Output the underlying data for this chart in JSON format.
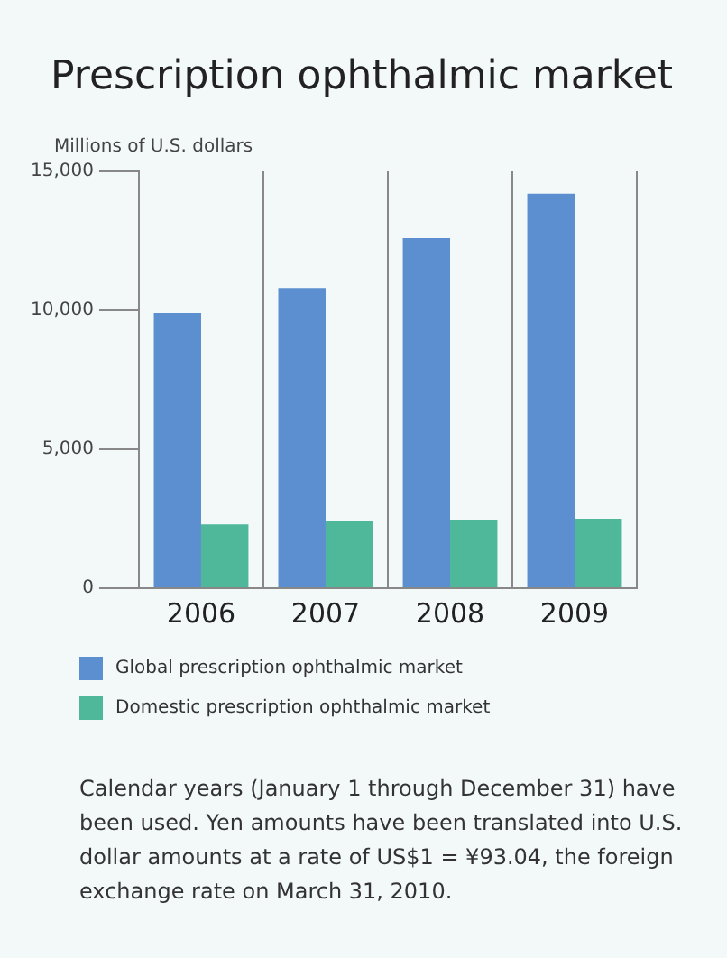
{
  "chart_data": {
    "type": "bar",
    "title": "Prescription ophthalmic market",
    "ylabel": "Millions of U.S. dollars",
    "categories": [
      "2006",
      "2007",
      "2008",
      "2009"
    ],
    "series": [
      {
        "name": "Global prescription ophthalmic market",
        "color": "#5b8fd0",
        "values": [
          9900,
          10800,
          12600,
          14200
        ]
      },
      {
        "name": "Domestic prescription ophthalmic market",
        "color": "#4fb89a",
        "values": [
          2300,
          2400,
          2450,
          2500
        ]
      }
    ],
    "ylim": [
      0,
      15000
    ],
    "yticks": [
      {
        "value": 0,
        "label": "0"
      },
      {
        "value": 5000,
        "label": "5,000"
      },
      {
        "value": 10000,
        "label": "10,000"
      },
      {
        "value": 15000,
        "label": "15,000"
      }
    ],
    "grid": "x",
    "legend": "bottom",
    "annotations": [
      "Calendar years (January 1 through December 31) have been used. Yen amounts have been translated into U.S. dollar amounts at a rate of US$1 = ¥93.04, the foreign exchange rate on March 31, 2010."
    ]
  }
}
